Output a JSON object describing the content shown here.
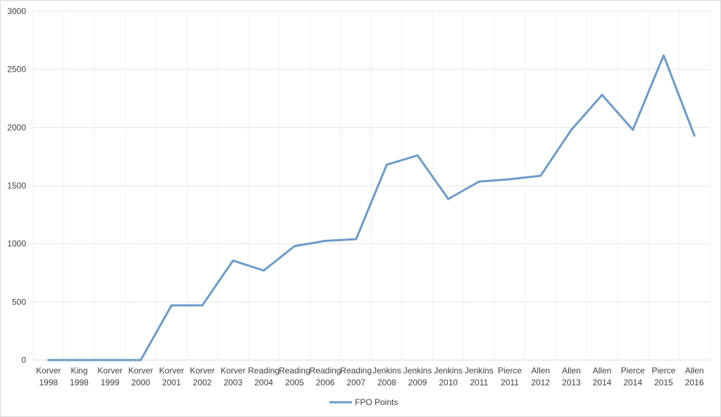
{
  "chart_data": {
    "type": "line",
    "title": "",
    "xlabel": "",
    "ylabel": "",
    "ylim": [
      0,
      3000
    ],
    "yticks": [
      0,
      500,
      1000,
      1500,
      2000,
      2500,
      3000
    ],
    "grid": true,
    "legend_position": "bottom",
    "categories": [
      {
        "name": "Korver",
        "year": "1998"
      },
      {
        "name": "King",
        "year": "1998"
      },
      {
        "name": "Korver",
        "year": "1999"
      },
      {
        "name": "Korver",
        "year": "2000"
      },
      {
        "name": "Korver",
        "year": "2001"
      },
      {
        "name": "Korver",
        "year": "2002"
      },
      {
        "name": "Korver",
        "year": "2003"
      },
      {
        "name": "Reading",
        "year": "2004"
      },
      {
        "name": "Reading",
        "year": "2005"
      },
      {
        "name": "Reading",
        "year": "2006"
      },
      {
        "name": "Reading",
        "year": "2007"
      },
      {
        "name": "Jenkins",
        "year": "2008"
      },
      {
        "name": "Jenkins",
        "year": "2009"
      },
      {
        "name": "Jenkins",
        "year": "2010"
      },
      {
        "name": "Jenkins",
        "year": "2011"
      },
      {
        "name": "Pierce",
        "year": "2011"
      },
      {
        "name": "Allen",
        "year": "2012"
      },
      {
        "name": "Allen",
        "year": "2013"
      },
      {
        "name": "Allen",
        "year": "2014"
      },
      {
        "name": "Pierce",
        "year": "2014"
      },
      {
        "name": "Pierce",
        "year": "2015"
      },
      {
        "name": "Allen",
        "year": "2016"
      }
    ],
    "series": [
      {
        "name": "FPO Points",
        "color": "#6b9bc8",
        "values": [
          0,
          0,
          0,
          0,
          470,
          470,
          855,
          770,
          980,
          1025,
          1040,
          1680,
          1760,
          1385,
          1535,
          1555,
          1585,
          1980,
          2280,
          1980,
          2620,
          1930
        ]
      }
    ]
  }
}
